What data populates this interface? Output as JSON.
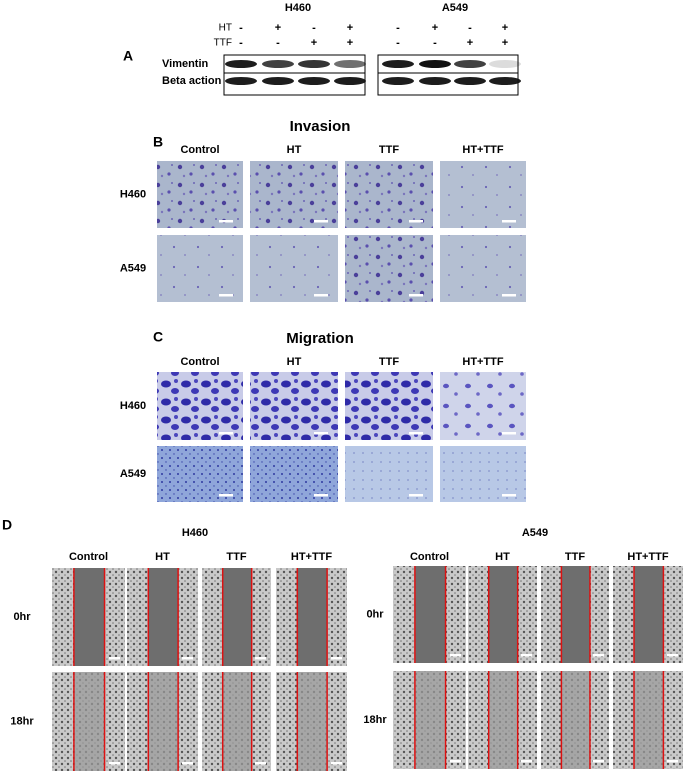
{
  "panel_a": {
    "label": "A",
    "cell_lines": [
      "H460",
      "A549"
    ],
    "treatments": [
      {
        "name": "HT",
        "signs": [
          "-",
          "+",
          "-",
          "+",
          "-",
          "+",
          "-",
          "+"
        ]
      },
      {
        "name": "TTF",
        "signs": [
          "-",
          "-",
          "+",
          "+",
          "-",
          "-",
          "+",
          "+"
        ]
      }
    ],
    "blots": [
      "Vimentin",
      "Beta action"
    ]
  },
  "panel_b": {
    "label": "B",
    "title": "Invasion",
    "columns": [
      "Control",
      "HT",
      "TTF",
      "HT+TTF"
    ],
    "rows": [
      "H460",
      "A549"
    ]
  },
  "panel_c": {
    "label": "C",
    "title": "Migration",
    "columns": [
      "Control",
      "HT",
      "TTF",
      "HT+TTF"
    ],
    "rows": [
      "H460",
      "A549"
    ]
  },
  "panel_d": {
    "label": "D",
    "groups": [
      {
        "title": "H460",
        "columns": [
          "Control",
          "HT",
          "TTF",
          "HT+TTF"
        ],
        "rows": [
          "0hr",
          "18hr"
        ]
      },
      {
        "title": "A549",
        "columns": [
          "Control",
          "HT",
          "TTF",
          "HT+TTF"
        ],
        "rows": [
          "0hr",
          "18hr"
        ]
      }
    ]
  }
}
